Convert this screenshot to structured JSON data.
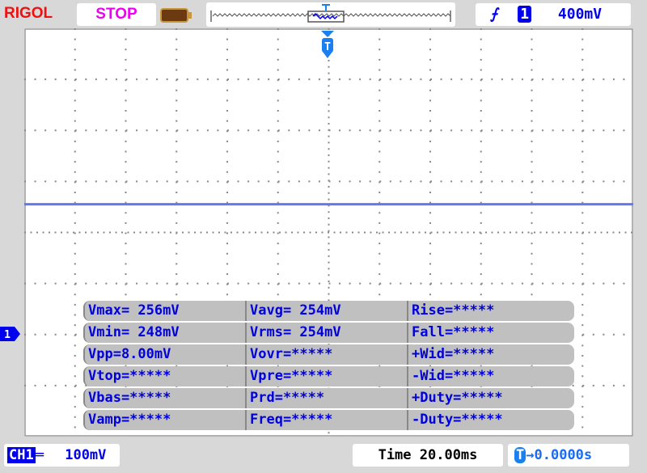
{
  "header": {
    "brand": "RIGOL",
    "run_status": "STOP",
    "trigger": {
      "edge_icon": "rising-edge-icon",
      "channel": "1",
      "level": "400mV"
    }
  },
  "colors": {
    "trace": "#6677ee",
    "trigger_marker": "#1a80f0",
    "text_blue": "#0000ee",
    "brand": "#f01010",
    "status": "#f000f0"
  },
  "measurements": [
    [
      "Vmax= 256mV",
      "Vavg= 254mV",
      "Rise=*****"
    ],
    [
      "Vmin= 248mV",
      "Vrms= 254mV",
      "Fall=*****"
    ],
    [
      "Vpp=8.00mV",
      "Vovr=*****",
      "+Wid=*****"
    ],
    [
      "Vtop=*****",
      "Vpre=*****",
      "-Wid=*****"
    ],
    [
      "Vbas=*****",
      "Prd=*****",
      "+Duty=*****"
    ],
    [
      "Vamp=*****",
      "Freq=*****",
      "-Duty=*****"
    ]
  ],
  "footer": {
    "channel": "CH1",
    "scale": "100mV",
    "timebase": "Time 20.00ms",
    "trigger_offset": "0.0000s"
  },
  "markers": {
    "trigger": "T",
    "channel": "1"
  }
}
